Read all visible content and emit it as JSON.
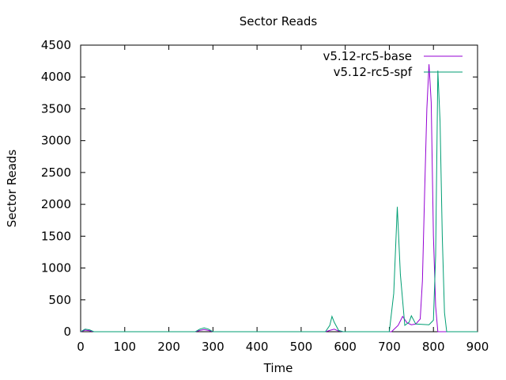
{
  "chart_data": {
    "type": "line",
    "title": "Sector Reads",
    "xlabel": "Time",
    "ylabel": "Sector Reads",
    "xlim": [
      0,
      900
    ],
    "ylim": [
      0,
      4500
    ],
    "xticks": [
      0,
      100,
      200,
      300,
      400,
      500,
      600,
      700,
      800,
      900
    ],
    "yticks": [
      0,
      500,
      1000,
      1500,
      2000,
      2500,
      3000,
      3500,
      4000,
      4500
    ],
    "grid": false,
    "legend_position": "top-right",
    "series": [
      {
        "name": "v5.12-rc5-base",
        "color": "#9400d3",
        "points": [
          [
            0,
            0
          ],
          [
            10,
            25
          ],
          [
            20,
            15
          ],
          [
            30,
            0
          ],
          [
            260,
            0
          ],
          [
            270,
            20
          ],
          [
            280,
            35
          ],
          [
            290,
            20
          ],
          [
            300,
            0
          ],
          [
            555,
            0
          ],
          [
            565,
            20
          ],
          [
            575,
            40
          ],
          [
            585,
            10
          ],
          [
            595,
            0
          ],
          [
            705,
            0
          ],
          [
            720,
            100
          ],
          [
            730,
            240
          ],
          [
            740,
            140
          ],
          [
            750,
            110
          ],
          [
            760,
            120
          ],
          [
            770,
            200
          ],
          [
            775,
            800
          ],
          [
            780,
            2200
          ],
          [
            785,
            3500
          ],
          [
            790,
            4200
          ],
          [
            795,
            3600
          ],
          [
            800,
            1500
          ],
          [
            805,
            400
          ],
          [
            810,
            0
          ],
          [
            900,
            0
          ]
        ]
      },
      {
        "name": "v5.12-rc5-spf",
        "color": "#009e73",
        "points": [
          [
            0,
            0
          ],
          [
            10,
            40
          ],
          [
            20,
            30
          ],
          [
            30,
            0
          ],
          [
            260,
            0
          ],
          [
            270,
            40
          ],
          [
            280,
            60
          ],
          [
            290,
            40
          ],
          [
            300,
            0
          ],
          [
            555,
            0
          ],
          [
            565,
            100
          ],
          [
            570,
            240
          ],
          [
            575,
            150
          ],
          [
            585,
            20
          ],
          [
            595,
            0
          ],
          [
            700,
            0
          ],
          [
            710,
            600
          ],
          [
            718,
            1960
          ],
          [
            725,
            900
          ],
          [
            735,
            100
          ],
          [
            745,
            150
          ],
          [
            750,
            250
          ],
          [
            760,
            120
          ],
          [
            790,
            110
          ],
          [
            800,
            180
          ],
          [
            805,
            1200
          ],
          [
            810,
            4100
          ],
          [
            815,
            3300
          ],
          [
            820,
            1500
          ],
          [
            825,
            300
          ],
          [
            830,
            0
          ],
          [
            900,
            0
          ]
        ]
      }
    ]
  }
}
